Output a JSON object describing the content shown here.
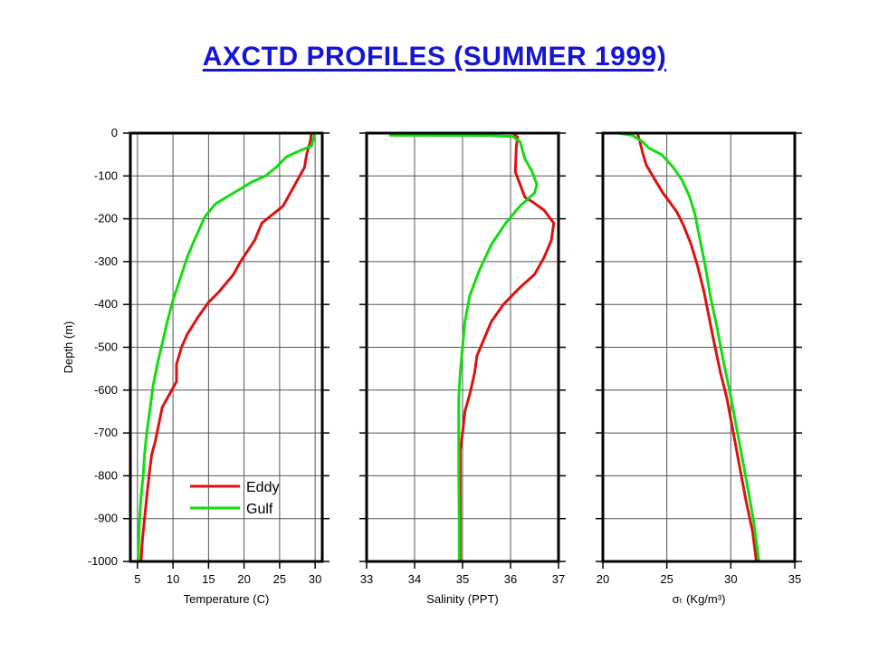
{
  "page": {
    "title": "AXCTD PROFILES (SUMMER 1999)",
    "title_color": "#1515d6"
  },
  "colors": {
    "eddy": "#dd1111",
    "gulf": "#11dd11",
    "grid": "#555555",
    "frame": "#000000"
  },
  "chart_data": [
    {
      "type": "line",
      "xlabel": "Temperature (C)",
      "ylabel": "Depth (m)",
      "xlim": [
        4,
        31
      ],
      "ylim": [
        -1000,
        0
      ],
      "xticks": [
        5,
        10,
        15,
        20,
        25,
        30
      ],
      "yticks": [
        0,
        -100,
        -200,
        -300,
        -400,
        -500,
        -600,
        -700,
        -800,
        -900,
        -1000
      ],
      "grid": true,
      "legend": {
        "placement": "bottom-right",
        "entries": [
          "Eddy",
          "Gulf"
        ]
      },
      "series": [
        {
          "name": "Eddy",
          "color": "#dd1111",
          "points": [
            [
              29.5,
              0
            ],
            [
              29.3,
              -20
            ],
            [
              28.8,
              -50
            ],
            [
              28.5,
              -80
            ],
            [
              27.5,
              -110
            ],
            [
              26.5,
              -140
            ],
            [
              25.5,
              -170
            ],
            [
              24,
              -190
            ],
            [
              22.5,
              -210
            ],
            [
              21.5,
              -250
            ],
            [
              20.5,
              -275
            ],
            [
              19.5,
              -300
            ],
            [
              18.5,
              -330
            ],
            [
              17.5,
              -350
            ],
            [
              16.5,
              -370
            ],
            [
              15,
              -395
            ],
            [
              13.5,
              -430
            ],
            [
              12,
              -470
            ],
            [
              11.2,
              -500
            ],
            [
              10.5,
              -540
            ],
            [
              10.5,
              -580
            ],
            [
              9.5,
              -610
            ],
            [
              8.5,
              -640
            ],
            [
              8,
              -680
            ],
            [
              7.5,
              -720
            ],
            [
              7,
              -750
            ],
            [
              6.7,
              -790
            ],
            [
              6.3,
              -850
            ],
            [
              6,
              -900
            ],
            [
              5.7,
              -950
            ],
            [
              5.5,
              -1000
            ]
          ]
        },
        {
          "name": "Gulf",
          "color": "#11dd11",
          "points": [
            [
              30,
              0
            ],
            [
              29.5,
              -30
            ],
            [
              28,
              -40
            ],
            [
              26,
              -55
            ],
            [
              24.5,
              -80
            ],
            [
              23,
              -100
            ],
            [
              21,
              -115
            ],
            [
              19,
              -135
            ],
            [
              17.5,
              -150
            ],
            [
              16,
              -165
            ],
            [
              14.5,
              -195
            ],
            [
              13,
              -250
            ],
            [
              12,
              -290
            ],
            [
              11,
              -340
            ],
            [
              10,
              -390
            ],
            [
              9.2,
              -440
            ],
            [
              8.5,
              -490
            ],
            [
              7.8,
              -540
            ],
            [
              7.2,
              -590
            ],
            [
              6.8,
              -640
            ],
            [
              6.3,
              -700
            ],
            [
              6,
              -750
            ],
            [
              5.8,
              -800
            ],
            [
              5.5,
              -850
            ],
            [
              5.3,
              -900
            ],
            [
              5.2,
              -950
            ],
            [
              5.1,
              -1000
            ]
          ]
        }
      ]
    },
    {
      "type": "line",
      "xlabel": "Salinity (PPT)",
      "ylabel": "",
      "xlim": [
        33,
        37
      ],
      "ylim": [
        -1000,
        0
      ],
      "xticks": [
        33,
        34,
        35,
        36,
        37
      ],
      "yticks": [
        0,
        -100,
        -200,
        -300,
        -400,
        -500,
        -600,
        -700,
        -800,
        -900,
        -1000
      ],
      "grid": true,
      "series": [
        {
          "name": "Eddy",
          "color": "#dd1111",
          "points": [
            [
              36.05,
              0
            ],
            [
              36.15,
              -10
            ],
            [
              36.12,
              -30
            ],
            [
              36.1,
              -90
            ],
            [
              36.2,
              -120
            ],
            [
              36.3,
              -150
            ],
            [
              36.45,
              -160
            ],
            [
              36.7,
              -180
            ],
            [
              36.9,
              -210
            ],
            [
              36.85,
              -250
            ],
            [
              36.7,
              -290
            ],
            [
              36.5,
              -330
            ],
            [
              36.2,
              -360
            ],
            [
              35.85,
              -400
            ],
            [
              35.6,
              -440
            ],
            [
              35.45,
              -480
            ],
            [
              35.3,
              -520
            ],
            [
              35.25,
              -560
            ],
            [
              35.15,
              -610
            ],
            [
              35.05,
              -650
            ],
            [
              35,
              -700
            ],
            [
              34.95,
              -740
            ],
            [
              34.95,
              -800
            ],
            [
              34.95,
              -850
            ],
            [
              34.95,
              -1000
            ]
          ]
        },
        {
          "name": "Gulf",
          "color": "#11dd11",
          "points": [
            [
              33.5,
              -5
            ],
            [
              35.6,
              -6
            ],
            [
              36.05,
              -8
            ],
            [
              36.2,
              -20
            ],
            [
              36.3,
              -60
            ],
            [
              36.45,
              -90
            ],
            [
              36.55,
              -120
            ],
            [
              36.5,
              -140
            ],
            [
              36.2,
              -170
            ],
            [
              35.9,
              -210
            ],
            [
              35.6,
              -260
            ],
            [
              35.35,
              -320
            ],
            [
              35.15,
              -380
            ],
            [
              35.05,
              -440
            ],
            [
              35,
              -500
            ],
            [
              34.95,
              -560
            ],
            [
              34.92,
              -620
            ],
            [
              34.92,
              -700
            ],
            [
              34.92,
              -800
            ],
            [
              34.93,
              -900
            ],
            [
              34.93,
              -1000
            ]
          ]
        }
      ]
    },
    {
      "type": "line",
      "xlabel": "σₜ (Kg/m³)",
      "ylabel": "",
      "xlim": [
        20,
        35
      ],
      "ylim": [
        -1000,
        0
      ],
      "xticks": [
        20,
        25,
        30,
        35
      ],
      "yticks": [
        0,
        -100,
        -200,
        -300,
        -400,
        -500,
        -600,
        -700,
        -800,
        -900,
        -1000
      ],
      "grid": true,
      "series": [
        {
          "name": "Eddy",
          "color": "#dd1111",
          "points": [
            [
              22.7,
              0
            ],
            [
              22.9,
              -20
            ],
            [
              23.1,
              -45
            ],
            [
              23.4,
              -75
            ],
            [
              24,
              -105
            ],
            [
              24.7,
              -140
            ],
            [
              25.2,
              -160
            ],
            [
              25.8,
              -185
            ],
            [
              26.3,
              -215
            ],
            [
              26.9,
              -260
            ],
            [
              27.4,
              -310
            ],
            [
              27.9,
              -370
            ],
            [
              28.3,
              -430
            ],
            [
              28.7,
              -490
            ],
            [
              29.2,
              -560
            ],
            [
              29.7,
              -620
            ],
            [
              30.2,
              -700
            ],
            [
              30.7,
              -780
            ],
            [
              31.2,
              -860
            ],
            [
              31.7,
              -930
            ],
            [
              32,
              -1000
            ]
          ]
        },
        {
          "name": "Gulf",
          "color": "#11dd11",
          "points": [
            [
              21.2,
              0
            ],
            [
              22.3,
              -5
            ],
            [
              23.1,
              -20
            ],
            [
              23.6,
              -35
            ],
            [
              24.6,
              -50
            ],
            [
              25.5,
              -80
            ],
            [
              26.2,
              -110
            ],
            [
              26.8,
              -150
            ],
            [
              27.2,
              -190
            ],
            [
              27.6,
              -250
            ],
            [
              28,
              -310
            ],
            [
              28.4,
              -380
            ],
            [
              28.9,
              -450
            ],
            [
              29.4,
              -530
            ],
            [
              29.9,
              -600
            ],
            [
              30.4,
              -680
            ],
            [
              30.9,
              -760
            ],
            [
              31.4,
              -840
            ],
            [
              31.8,
              -910
            ],
            [
              32.2,
              -1000
            ]
          ]
        }
      ]
    }
  ]
}
